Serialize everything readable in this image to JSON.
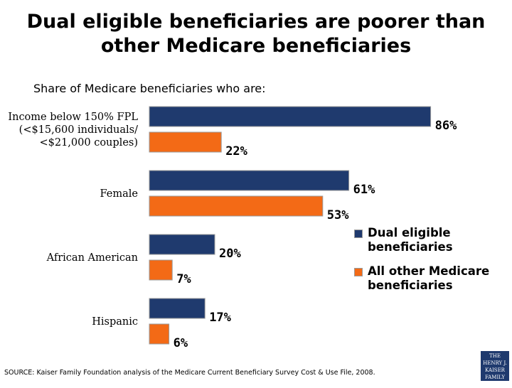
{
  "title_lines": [
    "Dual eligible beneficiaries are poorer than",
    "other Medicare beneficiaries"
  ],
  "subtitle": "Share of Medicare beneficiaries who are:",
  "colors": {
    "dual": "#1f3a6e",
    "other": "#f36a16",
    "bar_border": "#9a9a9a"
  },
  "chart_data": {
    "type": "bar",
    "orientation": "horizontal",
    "title": "Dual eligible beneficiaries are poorer than other Medicare beneficiaries",
    "subtitle": "Share of Medicare beneficiaries who are:",
    "categories": [
      [
        "Income below 150% FPL",
        "(<$15,600 individuals/",
        "<$21,000 couples)"
      ],
      [
        "Female"
      ],
      [
        "African American"
      ],
      [
        "Hispanic"
      ]
    ],
    "series": [
      {
        "name": "Dual eligible beneficiaries",
        "values": [
          86,
          61,
          20,
          17
        ],
        "labels": [
          "86%",
          "61%",
          "20%",
          "17%"
        ]
      },
      {
        "name": "All other Medicare beneficiaries",
        "values": [
          22,
          53,
          7,
          6
        ],
        "labels": [
          "22%",
          "53%",
          "7%",
          "6%"
        ]
      }
    ],
    "xlim": [
      0,
      100
    ],
    "grid": false,
    "legend_position": "right"
  },
  "legend": [
    {
      "label": "Dual eligible beneficiaries",
      "color": "#1f3a6e"
    },
    {
      "label": "All other Medicare beneficiaries",
      "color": "#f36a16"
    }
  ],
  "source": "SOURCE: Kaiser Family Foundation analysis of the Medicare Current Beneficiary Survey Cost & Use File, 2008.",
  "logo_lines": [
    "THE HENRY J.",
    "KAISER",
    "FAMILY",
    "FOUNDATION"
  ]
}
